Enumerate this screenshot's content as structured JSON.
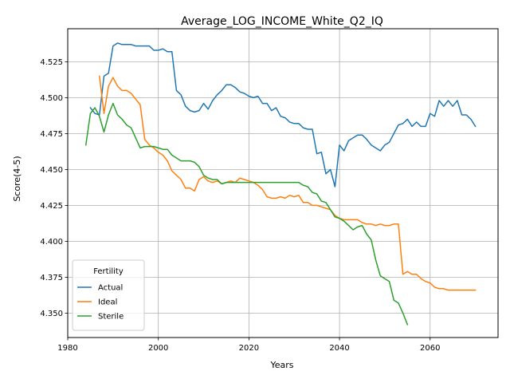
{
  "chart_data": {
    "type": "line",
    "title": "Average_LOG_INCOME_White_Q2_IQ",
    "xlabel": "Years",
    "ylabel": "Score(4-5)",
    "xlim": [
      1980,
      2075
    ],
    "ylim": [
      4.333,
      4.548
    ],
    "xticks": [
      1980,
      2000,
      2020,
      2040,
      2060
    ],
    "yticks": [
      4.35,
      4.375,
      4.4,
      4.425,
      4.45,
      4.475,
      4.5,
      4.525
    ],
    "grid": true,
    "legend": {
      "title": "Fertility",
      "position": "lower-left"
    },
    "series": [
      {
        "name": "Actual",
        "color": "#1f77b4",
        "points": [
          [
            1985,
            4.493
          ],
          [
            1986,
            4.489
          ],
          [
            1987,
            4.488
          ],
          [
            1988,
            4.515
          ],
          [
            1989,
            4.517
          ],
          [
            1990,
            4.536
          ],
          [
            1991,
            4.538
          ],
          [
            1992,
            4.537
          ],
          [
            1993,
            4.537
          ],
          [
            1994,
            4.537
          ],
          [
            1995,
            4.536
          ],
          [
            1996,
            4.536
          ],
          [
            1997,
            4.536
          ],
          [
            1998,
            4.536
          ],
          [
            1999,
            4.533
          ],
          [
            2000,
            4.533
          ],
          [
            2001,
            4.534
          ],
          [
            2002,
            4.532
          ],
          [
            2003,
            4.532
          ],
          [
            2004,
            4.505
          ],
          [
            2005,
            4.502
          ],
          [
            2006,
            4.494
          ],
          [
            2007,
            4.491
          ],
          [
            2008,
            4.49
          ],
          [
            2009,
            4.491
          ],
          [
            2010,
            4.496
          ],
          [
            2011,
            4.492
          ],
          [
            2012,
            4.498
          ],
          [
            2013,
            4.502
          ],
          [
            2014,
            4.505
          ],
          [
            2015,
            4.509
          ],
          [
            2016,
            4.509
          ],
          [
            2017,
            4.507
          ],
          [
            2018,
            4.504
          ],
          [
            2019,
            4.503
          ],
          [
            2020,
            4.501
          ],
          [
            2021,
            4.5
          ],
          [
            2022,
            4.501
          ],
          [
            2023,
            4.496
          ],
          [
            2024,
            4.496
          ],
          [
            2025,
            4.491
          ],
          [
            2026,
            4.493
          ],
          [
            2027,
            4.487
          ],
          [
            2028,
            4.486
          ],
          [
            2029,
            4.483
          ],
          [
            2030,
            4.482
          ],
          [
            2031,
            4.482
          ],
          [
            2032,
            4.479
          ],
          [
            2033,
            4.478
          ],
          [
            2034,
            4.478
          ],
          [
            2035,
            4.461
          ],
          [
            2036,
            4.462
          ],
          [
            2037,
            4.447
          ],
          [
            2038,
            4.45
          ],
          [
            2039,
            4.438
          ],
          [
            2040,
            4.467
          ],
          [
            2041,
            4.463
          ],
          [
            2042,
            4.47
          ],
          [
            2043,
            4.472
          ],
          [
            2044,
            4.474
          ],
          [
            2045,
            4.474
          ],
          [
            2046,
            4.471
          ],
          [
            2047,
            4.467
          ],
          [
            2048,
            4.465
          ],
          [
            2049,
            4.463
          ],
          [
            2050,
            4.467
          ],
          [
            2051,
            4.469
          ],
          [
            2052,
            4.475
          ],
          [
            2053,
            4.481
          ],
          [
            2054,
            4.482
          ],
          [
            2055,
            4.485
          ],
          [
            2056,
            4.48
          ],
          [
            2057,
            4.483
          ],
          [
            2058,
            4.48
          ],
          [
            2059,
            4.48
          ],
          [
            2060,
            4.489
          ],
          [
            2061,
            4.487
          ],
          [
            2062,
            4.498
          ],
          [
            2063,
            4.494
          ],
          [
            2064,
            4.498
          ],
          [
            2065,
            4.494
          ],
          [
            2066,
            4.498
          ],
          [
            2067,
            4.488
          ],
          [
            2068,
            4.488
          ],
          [
            2069,
            4.485
          ],
          [
            2070,
            4.48
          ]
        ]
      },
      {
        "name": "Ideal",
        "color": "#ff7f0e",
        "points": [
          [
            1987,
            4.515
          ],
          [
            1988,
            4.489
          ],
          [
            1989,
            4.508
          ],
          [
            1990,
            4.514
          ],
          [
            1991,
            4.508
          ],
          [
            1992,
            4.505
          ],
          [
            1993,
            4.505
          ],
          [
            1994,
            4.503
          ],
          [
            1995,
            4.499
          ],
          [
            1996,
            4.495
          ],
          [
            1997,
            4.471
          ],
          [
            1998,
            4.467
          ],
          [
            1999,
            4.465
          ],
          [
            2000,
            4.462
          ],
          [
            2001,
            4.46
          ],
          [
            2002,
            4.456
          ],
          [
            2003,
            4.449
          ],
          [
            2004,
            4.446
          ],
          [
            2005,
            4.443
          ],
          [
            2006,
            4.437
          ],
          [
            2007,
            4.437
          ],
          [
            2008,
            4.435
          ],
          [
            2009,
            4.443
          ],
          [
            2010,
            4.445
          ],
          [
            2011,
            4.442
          ],
          [
            2012,
            4.441
          ],
          [
            2013,
            4.442
          ],
          [
            2014,
            4.44
          ],
          [
            2015,
            4.441
          ],
          [
            2016,
            4.442
          ],
          [
            2017,
            4.441
          ],
          [
            2018,
            4.444
          ],
          [
            2019,
            4.443
          ],
          [
            2020,
            4.442
          ],
          [
            2021,
            4.441
          ],
          [
            2022,
            4.439
          ],
          [
            2023,
            4.436
          ],
          [
            2024,
            4.431
          ],
          [
            2025,
            4.43
          ],
          [
            2026,
            4.43
          ],
          [
            2027,
            4.431
          ],
          [
            2028,
            4.43
          ],
          [
            2029,
            4.432
          ],
          [
            2030,
            4.431
          ],
          [
            2031,
            4.432
          ],
          [
            2032,
            4.427
          ],
          [
            2033,
            4.427
          ],
          [
            2034,
            4.425
          ],
          [
            2035,
            4.425
          ],
          [
            2036,
            4.424
          ],
          [
            2037,
            4.423
          ],
          [
            2038,
            4.422
          ],
          [
            2039,
            4.418
          ],
          [
            2040,
            4.416
          ],
          [
            2041,
            4.415
          ],
          [
            2042,
            4.415
          ],
          [
            2043,
            4.415
          ],
          [
            2044,
            4.415
          ],
          [
            2045,
            4.413
          ],
          [
            2046,
            4.412
          ],
          [
            2047,
            4.412
          ],
          [
            2048,
            4.411
          ],
          [
            2049,
            4.412
          ],
          [
            2050,
            4.411
          ],
          [
            2051,
            4.411
          ],
          [
            2052,
            4.412
          ],
          [
            2053,
            4.412
          ],
          [
            2054,
            4.377
          ],
          [
            2055,
            4.379
          ],
          [
            2056,
            4.377
          ],
          [
            2057,
            4.377
          ],
          [
            2058,
            4.374
          ],
          [
            2059,
            4.372
          ],
          [
            2060,
            4.371
          ],
          [
            2061,
            4.368
          ],
          [
            2062,
            4.367
          ],
          [
            2063,
            4.367
          ],
          [
            2064,
            4.366
          ],
          [
            2065,
            4.366
          ],
          [
            2066,
            4.366
          ],
          [
            2067,
            4.366
          ],
          [
            2068,
            4.366
          ],
          [
            2069,
            4.366
          ],
          [
            2070,
            4.366
          ]
        ]
      },
      {
        "name": "Sterile",
        "color": "#2ca02c",
        "points": [
          [
            1984,
            4.467
          ],
          [
            1985,
            4.489
          ],
          [
            1986,
            4.493
          ],
          [
            1987,
            4.487
          ],
          [
            1988,
            4.476
          ],
          [
            1989,
            4.488
          ],
          [
            1990,
            4.496
          ],
          [
            1991,
            4.488
          ],
          [
            1992,
            4.485
          ],
          [
            1993,
            4.481
          ],
          [
            1994,
            4.479
          ],
          [
            1995,
            4.472
          ],
          [
            1996,
            4.465
          ],
          [
            1997,
            4.466
          ],
          [
            1998,
            4.466
          ],
          [
            1999,
            4.466
          ],
          [
            2000,
            4.465
          ],
          [
            2001,
            4.464
          ],
          [
            2002,
            4.464
          ],
          [
            2003,
            4.46
          ],
          [
            2004,
            4.458
          ],
          [
            2005,
            4.456
          ],
          [
            2006,
            4.456
          ],
          [
            2007,
            4.456
          ],
          [
            2008,
            4.455
          ],
          [
            2009,
            4.452
          ],
          [
            2010,
            4.446
          ],
          [
            2011,
            4.444
          ],
          [
            2012,
            4.443
          ],
          [
            2013,
            4.443
          ],
          [
            2014,
            4.44
          ],
          [
            2015,
            4.441
          ],
          [
            2016,
            4.441
          ],
          [
            2017,
            4.441
          ],
          [
            2018,
            4.441
          ],
          [
            2019,
            4.441
          ],
          [
            2020,
            4.441
          ],
          [
            2021,
            4.441
          ],
          [
            2022,
            4.441
          ],
          [
            2023,
            4.441
          ],
          [
            2024,
            4.441
          ],
          [
            2025,
            4.441
          ],
          [
            2026,
            4.441
          ],
          [
            2027,
            4.441
          ],
          [
            2028,
            4.441
          ],
          [
            2029,
            4.441
          ],
          [
            2030,
            4.441
          ],
          [
            2031,
            4.441
          ],
          [
            2032,
            4.439
          ],
          [
            2033,
            4.438
          ],
          [
            2034,
            4.434
          ],
          [
            2035,
            4.433
          ],
          [
            2036,
            4.428
          ],
          [
            2037,
            4.427
          ],
          [
            2038,
            4.422
          ],
          [
            2039,
            4.417
          ],
          [
            2040,
            4.416
          ],
          [
            2041,
            4.414
          ],
          [
            2042,
            4.411
          ],
          [
            2043,
            4.408
          ],
          [
            2044,
            4.41
          ],
          [
            2045,
            4.411
          ],
          [
            2046,
            4.405
          ],
          [
            2047,
            4.401
          ],
          [
            2048,
            4.387
          ],
          [
            2049,
            4.376
          ],
          [
            2050,
            4.374
          ],
          [
            2051,
            4.372
          ],
          [
            2052,
            4.359
          ],
          [
            2053,
            4.357
          ],
          [
            2054,
            4.35
          ],
          [
            2055,
            4.342
          ]
        ]
      }
    ]
  }
}
